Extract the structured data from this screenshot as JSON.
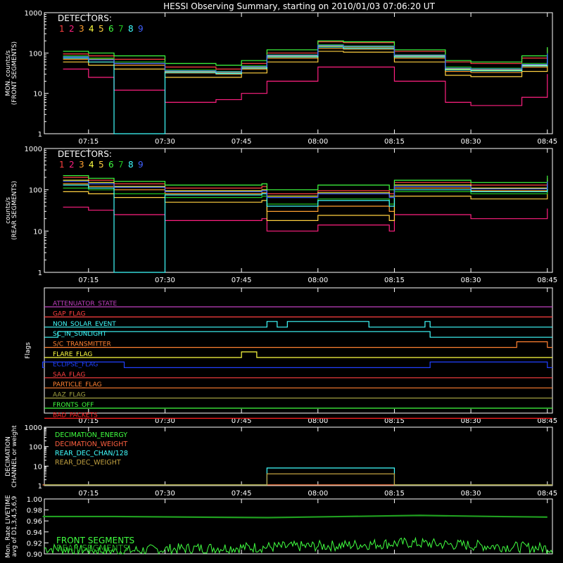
{
  "title": "HESSI Observing Summary, starting on 2010/01/03 07:06:20 UT",
  "time_ticks": [
    "07:15",
    "07:30",
    "07:45",
    "08:00",
    "08:15",
    "08:30",
    "08:45"
  ],
  "colors": {
    "det": [
      "#ff4040",
      "#ff2080",
      "#ffa030",
      "#ffff40",
      "#ffd040",
      "#40ff40",
      "#20c020",
      "#40ffff",
      "#4060ff"
    ]
  },
  "chart_data": [
    {
      "type": "line",
      "ylabel": "MON. counts/s (FRONT SEGMENTS)",
      "ylabel_lines": [
        "MON. counts/s",
        "(FRONT SEGMENTS)"
      ],
      "yscale": "log",
      "ylim": [
        1,
        1000
      ],
      "ytick_labels": [
        "1",
        "10",
        "100",
        "1000"
      ],
      "legend_title": "DETECTORS:",
      "legend_digits": [
        "1",
        "2",
        "3",
        "4",
        "5",
        "6",
        "7",
        "8",
        "9"
      ],
      "x": [
        "07:10",
        "07:15",
        "07:20",
        "07:30",
        "07:40",
        "07:45",
        "07:50",
        "08:00",
        "08:05",
        "08:15",
        "08:25",
        "08:30",
        "08:40",
        "08:45"
      ],
      "series": [
        {
          "name": "1",
          "color": "#ff4040",
          "values": [
            95,
            85,
            70,
            45,
            40,
            55,
            100,
            190,
            180,
            110,
            60,
            55,
            75,
            130
          ]
        },
        {
          "name": "2",
          "color": "#ff2080",
          "values": [
            40,
            25,
            12,
            6,
            7,
            10,
            20,
            45,
            45,
            20,
            6,
            5,
            8,
            30
          ]
        },
        {
          "name": "3",
          "color": "#ffa030",
          "values": [
            70,
            60,
            50,
            32,
            30,
            40,
            75,
            130,
            125,
            75,
            35,
            33,
            45,
            85
          ]
        },
        {
          "name": "4",
          "color": "#ffff40",
          "values": [
            80,
            70,
            55,
            35,
            33,
            45,
            85,
            150,
            140,
            85,
            40,
            38,
            50,
            95
          ]
        },
        {
          "name": "5",
          "color": "#ffd040",
          "values": [
            60,
            50,
            40,
            25,
            25,
            32,
            60,
            110,
            105,
            60,
            28,
            26,
            35,
            70
          ]
        },
        {
          "name": "6",
          "color": "#40ff40",
          "values": [
            110,
            100,
            85,
            55,
            50,
            65,
            120,
            200,
            190,
            120,
            65,
            60,
            85,
            140
          ]
        },
        {
          "name": "7",
          "color": "#20c020",
          "values": [
            85,
            75,
            60,
            38,
            35,
            48,
            90,
            160,
            150,
            90,
            45,
            42,
            55,
            100
          ]
        },
        {
          "name": "8",
          "color": "#40ffff",
          "values": [
            75,
            60,
            1,
            33,
            31,
            42,
            80,
            140,
            130,
            80,
            38,
            36,
            48,
            90
          ]
        },
        {
          "name": "9",
          "color": "#4060ff",
          "values": [
            80,
            68,
            55,
            36,
            34,
            46,
            88,
            155,
            145,
            88,
            42,
            40,
            52,
            98
          ]
        }
      ]
    },
    {
      "type": "line",
      "ylabel": "counts/s (REAR SEGMENTS)",
      "ylabel_lines": [
        "counts/s",
        "(REAR SEGMENTS)"
      ],
      "yscale": "log",
      "ylim": [
        1,
        1000
      ],
      "ytick_labels": [
        "1",
        "10",
        "100",
        "1000"
      ],
      "legend_title": "DETECTORS:",
      "legend_digits": [
        "1",
        "2",
        "3",
        "4",
        "5",
        "6",
        "7",
        "8",
        "9"
      ],
      "x": [
        "07:10",
        "07:15",
        "07:20",
        "07:30",
        "07:40",
        "07:49",
        "07:50",
        "08:00",
        "08:14",
        "08:15",
        "08:30",
        "08:45"
      ],
      "series": [
        {
          "name": "1",
          "color": "#ff4040",
          "values": [
            200,
            170,
            140,
            110,
            110,
            120,
            80,
            95,
            80,
            150,
            130,
            190
          ]
        },
        {
          "name": "2",
          "color": "#ff2080",
          "values": [
            38,
            32,
            25,
            18,
            18,
            20,
            10,
            14,
            10,
            25,
            20,
            35
          ]
        },
        {
          "name": "3",
          "color": "#ffa030",
          "values": [
            140,
            120,
            100,
            80,
            80,
            85,
            30,
            40,
            30,
            110,
            95,
            140
          ]
        },
        {
          "name": "4",
          "color": "#ffff40",
          "values": [
            170,
            150,
            120,
            95,
            95,
            100,
            70,
            85,
            70,
            130,
            110,
            170
          ]
        },
        {
          "name": "5",
          "color": "#ffd040",
          "values": [
            90,
            80,
            65,
            50,
            50,
            55,
            18,
            24,
            18,
            70,
            60,
            90
          ]
        },
        {
          "name": "6",
          "color": "#40ff40",
          "values": [
            220,
            190,
            160,
            130,
            130,
            140,
            100,
            130,
            100,
            170,
            150,
            220
          ]
        },
        {
          "name": "7",
          "color": "#20c020",
          "values": [
            110,
            100,
            80,
            65,
            65,
            70,
            45,
            60,
            45,
            90,
            80,
            115
          ]
        },
        {
          "name": "8",
          "color": "#40ffff",
          "values": [
            130,
            110,
            1,
            75,
            75,
            80,
            40,
            55,
            40,
            100,
            90,
            130
          ]
        },
        {
          "name": "9",
          "color": "#4060ff",
          "values": [
            160,
            140,
            115,
            90,
            90,
            95,
            65,
            80,
            65,
            120,
            105,
            160
          ]
        }
      ]
    },
    {
      "type": "line",
      "ylabel": "Flags",
      "flags": [
        {
          "label": "ATTENUATOR_STATE",
          "color": "#c040c0",
          "on": []
        },
        {
          "label": "GAP_FLAG",
          "color": "#ff4040",
          "on": []
        },
        {
          "label": "NON_SOLAR_EVENT",
          "color": "#40ffff",
          "on": [
            [
              "07:50",
              "07:52"
            ],
            [
              "07:54",
              "08:10"
            ],
            [
              "08:21",
              "08:22"
            ]
          ]
        },
        {
          "label": "SC_IN_SUNLIGHT",
          "color": "#40ffff",
          "on": [
            [
              "07:09",
              "08:22"
            ]
          ]
        },
        {
          "label": "S/C_TRANSMITTER",
          "color": "#ff8030",
          "on": [
            [
              "08:39",
              "08:45"
            ]
          ]
        },
        {
          "label": "FLARE_FLAG",
          "color": "#ffff40",
          "on": [
            [
              "07:45",
              "07:48"
            ]
          ]
        },
        {
          "label": "ECLIPSE_FLAG",
          "color": "#2040ff",
          "on": [
            [
              "07:06",
              "07:22"
            ],
            [
              "08:22",
              "08:45"
            ]
          ]
        },
        {
          "label": "SAA_FLAG",
          "color": "#ff4040",
          "on": []
        },
        {
          "label": "PARTICLE_FLAG",
          "color": "#ff8030",
          "on": []
        },
        {
          "label": "AAZ_FLAG",
          "color": "#a0a040",
          "on": []
        },
        {
          "label": "FRONTS_OFF",
          "color": "#40ff40",
          "on": []
        },
        {
          "label": "BAD_PACKETS",
          "color": "#ff2020",
          "on": []
        }
      ]
    },
    {
      "type": "line",
      "ylabel": "DECIMATION CHANNEL or weight",
      "ylabel_lines": [
        "DECIMATION",
        "CHANNEL or weight"
      ],
      "yscale": "log",
      "ylim": [
        1,
        1000
      ],
      "ytick_labels": [
        "1",
        "10",
        "100",
        "1000"
      ],
      "series": [
        {
          "name": "DECIMATION_ENERGY",
          "color": "#40ff40",
          "segments": [
            [
              "07:06",
              "08:45",
              0
            ]
          ]
        },
        {
          "name": "DECIMATION_WEIGHT",
          "color": "#ff6040",
          "segments": [
            [
              "07:06",
              "08:45",
              0
            ]
          ]
        },
        {
          "name": "REAR_DEC_CHAN/128",
          "color": "#40ffff",
          "segments": [
            [
              "07:50",
              "08:15",
              8
            ]
          ]
        },
        {
          "name": "REAR_DEC_WEIGHT",
          "color": "#c0a040",
          "segments": [
            [
              "07:50",
              "08:15",
              4
            ]
          ]
        }
      ]
    },
    {
      "type": "line",
      "ylabel": "Mon. Rate LIVETIME avg of D1,3,4,5,6,9",
      "ylabel_lines": [
        "Mon. Rate LIVETIME",
        "avg of D1,3,4,5,6,9"
      ],
      "ylim": [
        0.9,
        1.0
      ],
      "ytick_labels": [
        "0.90",
        "0.92",
        "0.94",
        "0.96",
        "0.98",
        "1.00"
      ],
      "series": [
        {
          "name": "FRONT SEGMENTS",
          "color": "#40ff40",
          "values": [
            0.91,
            0.905,
            0.91,
            0.912,
            0.915,
            0.92,
            0.915,
            0.91
          ]
        },
        {
          "name": "REAR SEGMENTS",
          "color": "#20a020",
          "values": [
            0.968,
            0.968,
            0.967,
            0.966,
            0.968,
            0.97,
            0.968,
            0.967
          ]
        }
      ],
      "x": [
        "07:06",
        "07:20",
        "07:35",
        "07:50",
        "08:05",
        "08:20",
        "08:35",
        "08:45"
      ]
    }
  ]
}
